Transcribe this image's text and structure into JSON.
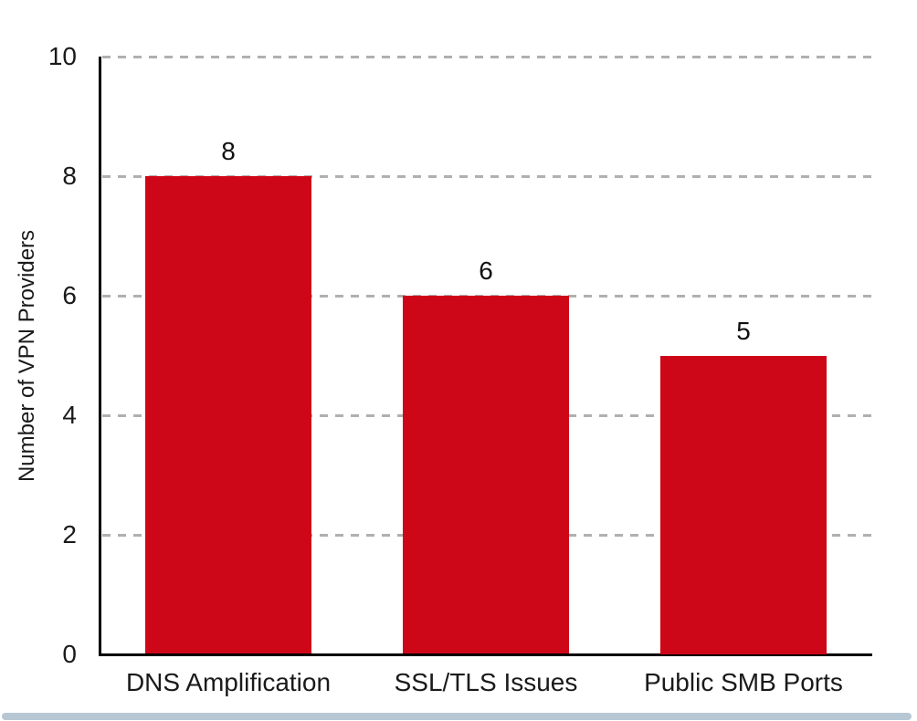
{
  "chart_data": {
    "type": "bar",
    "categories": [
      "DNS Amplification",
      "SSL/TLS Issues",
      "Public SMB Ports"
    ],
    "values": [
      8,
      6,
      5
    ],
    "value_labels": [
      "8",
      "6",
      "5"
    ],
    "title": "",
    "xlabel": "",
    "ylabel": "Number of VPN Providers",
    "ylim": [
      0,
      10
    ],
    "yticks": [
      0,
      2,
      4,
      6,
      8,
      10
    ],
    "grid": "horizontal-dashed",
    "legend": "none"
  },
  "colors": {
    "bar": "#ce0718",
    "grid": "#b0b0b0",
    "axis": "#000000",
    "text": "#1a1a1a",
    "bottom_accent": "#b7c7d4",
    "background": "#ffffff"
  }
}
